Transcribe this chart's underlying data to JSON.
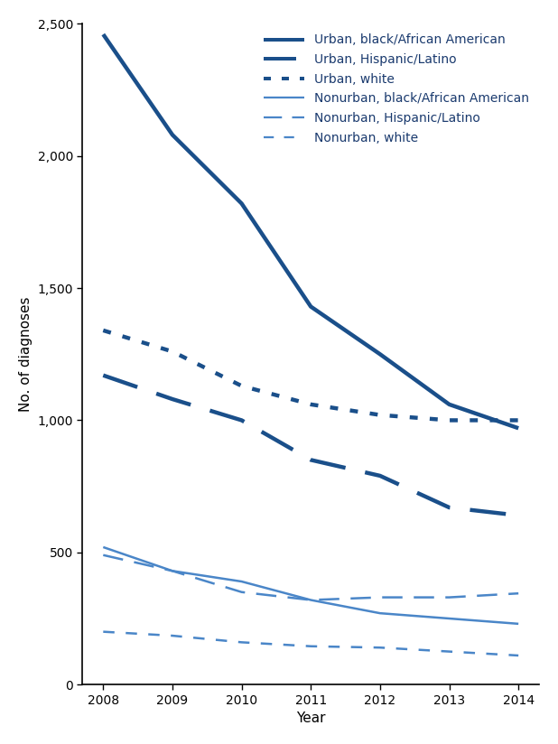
{
  "years": [
    2008,
    2009,
    2010,
    2011,
    2012,
    2013,
    2014
  ],
  "series": [
    {
      "label": "Urban, black/African American",
      "color": "#1a4f8a",
      "linestyle": "solid",
      "linewidth": 3.2,
      "values": [
        2460,
        2080,
        1820,
        1430,
        1250,
        1060,
        970
      ]
    },
    {
      "label": "Urban, Hispanic/Latino",
      "color": "#1a4f8a",
      "linestyle": "largdash",
      "linewidth": 3.2,
      "values": [
        1170,
        1080,
        1000,
        850,
        790,
        670,
        640
      ]
    },
    {
      "label": "Urban, white",
      "color": "#1a4f8a",
      "linestyle": "dotted",
      "linewidth": 3.2,
      "values": [
        1340,
        1260,
        1130,
        1060,
        1020,
        1000,
        1000
      ]
    },
    {
      "label": "Nonurban, black/African American",
      "color": "#4a86c8",
      "linestyle": "solid",
      "linewidth": 1.8,
      "values": [
        520,
        430,
        390,
        320,
        270,
        250,
        230
      ]
    },
    {
      "label": "Nonurban, Hispanic/Latino",
      "color": "#4a86c8",
      "linestyle": "largdash",
      "linewidth": 1.8,
      "values": [
        490,
        430,
        350,
        320,
        330,
        330,
        345
      ]
    },
    {
      "label": "Nonurban, white",
      "color": "#4a86c8",
      "linestyle": "smalldash",
      "linewidth": 1.8,
      "values": [
        200,
        185,
        160,
        145,
        140,
        125,
        110
      ]
    }
  ],
  "xlabel": "Year",
  "ylabel": "No. of diagnoses",
  "ylim": [
    0,
    2500
  ],
  "yticks": [
    0,
    500,
    1000,
    1500,
    2000,
    2500
  ],
  "xlim": [
    2007.7,
    2014.3
  ],
  "xticks": [
    2008,
    2009,
    2010,
    2011,
    2012,
    2013,
    2014
  ],
  "background_color": "#ffffff",
  "legend_fontsize": 10,
  "axis_fontsize": 11,
  "tick_fontsize": 10
}
